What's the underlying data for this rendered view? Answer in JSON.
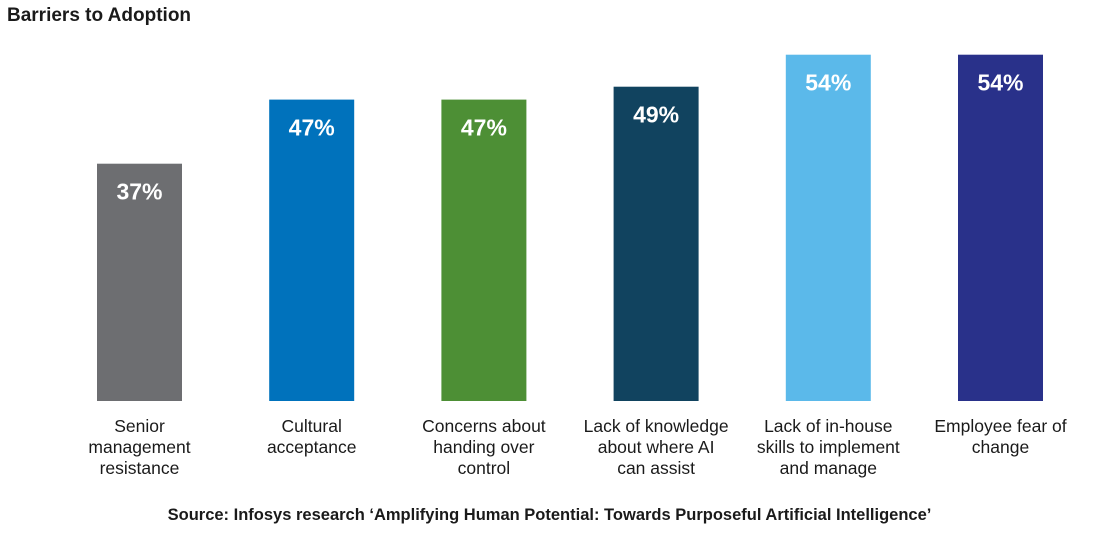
{
  "chart_data": {
    "type": "bar",
    "title": "Barriers to Adoption",
    "categories": [
      [
        "Senior",
        "management",
        "resistance"
      ],
      [
        "Cultural",
        "acceptance"
      ],
      [
        "Concerns about",
        "handing over",
        "control"
      ],
      [
        "Lack of knowledge",
        "about where AI",
        "can assist"
      ],
      [
        "Lack of in-house",
        "skills to implement",
        "and manage"
      ],
      [
        "Employee fear of",
        "change"
      ]
    ],
    "values": [
      37,
      47,
      47,
      49,
      54,
      54
    ],
    "value_labels": [
      "37%",
      "47%",
      "47%",
      "49%",
      "54%",
      "54%"
    ],
    "colors": [
      "#6d6e71",
      "#0072bc",
      "#4d8f35",
      "#11435f",
      "#5bb9ea",
      "#29318a"
    ],
    "value_label_color": "#ffffff",
    "xlabel": "",
    "ylabel": "",
    "ylim": [
      0,
      58
    ],
    "grid": false,
    "source": "Source: Infosys research ‘Amplifying Human Potential: Towards Purposeful Artificial Intelligence’"
  }
}
